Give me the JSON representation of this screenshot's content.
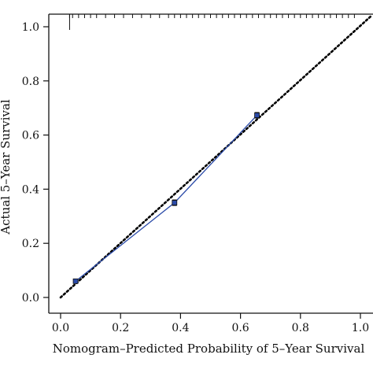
{
  "chart_data": {
    "type": "scatter",
    "title": "",
    "xlabel": "Nomogram–Predicted Probability of 5–Year Survival",
    "ylabel": "Actual 5–Year Survival",
    "xlim": [
      0.0,
      1.0
    ],
    "ylim": [
      0.0,
      1.0
    ],
    "x_ticks": [
      "0.0",
      "0.2",
      "0.4",
      "0.6",
      "0.8",
      "1.0"
    ],
    "y_ticks": [
      "0.0",
      "0.2",
      "0.4",
      "0.6",
      "0.8",
      "1.0"
    ],
    "grid": false,
    "reference_line": {
      "style": "dotted",
      "color": "#000000",
      "from": [
        0.0,
        0.0
      ],
      "to": [
        1.0,
        1.0
      ]
    },
    "series": [
      {
        "color": "#2a4aa8",
        "x": [
          0.05,
          0.38,
          0.655
        ],
        "y": [
          0.06,
          0.35,
          0.673
        ],
        "error": [
          0.006,
          0.01,
          0.01
        ]
      }
    ],
    "rug_top": {
      "description_shown": false,
      "x": [
        0.03,
        0.04,
        0.06,
        0.08,
        0.1,
        0.12,
        0.15,
        0.18,
        0.21,
        0.24,
        0.27,
        0.3,
        0.33,
        0.36,
        0.38,
        0.4,
        0.42,
        0.44,
        0.46,
        0.48,
        0.5,
        0.52,
        0.54,
        0.56,
        0.58,
        0.6,
        0.62,
        0.64,
        0.66,
        0.68,
        0.7,
        0.72,
        0.74,
        0.76,
        0.78,
        0.8,
        0.82,
        0.84,
        0.86,
        0.88,
        0.9,
        0.92,
        0.94,
        0.96,
        0.98
      ]
    }
  }
}
